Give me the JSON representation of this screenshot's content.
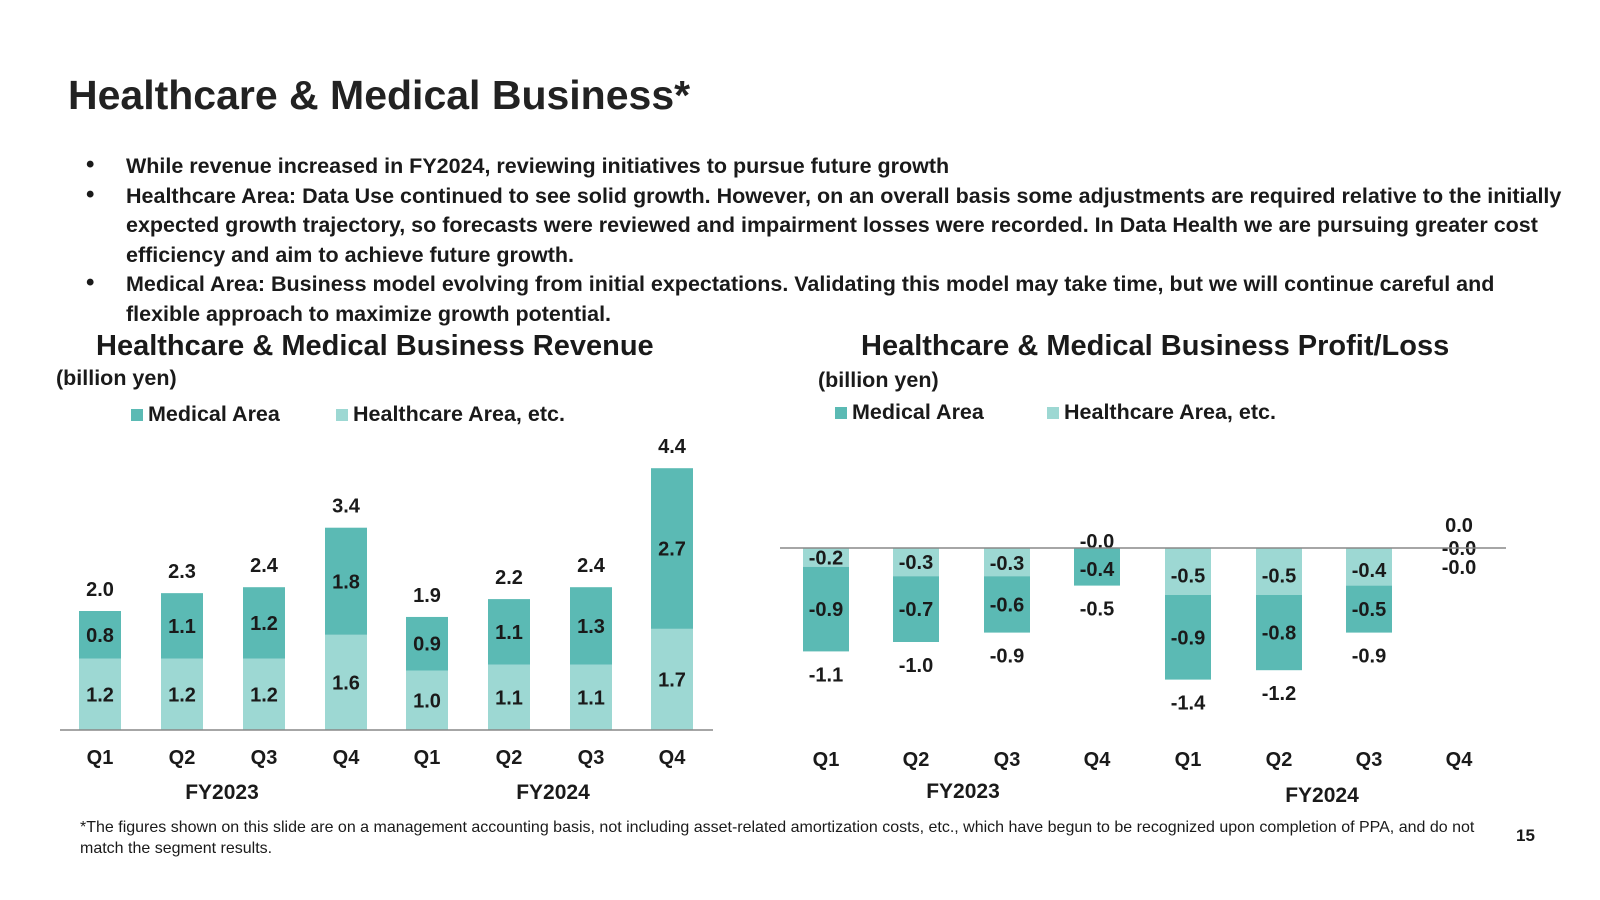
{
  "slide": {
    "title": "Healthcare & Medical Business*",
    "bullets": [
      "While revenue increased in FY2024, reviewing initiatives to pursue future growth",
      "Healthcare Area: Data Use continued to see solid growth. However, on an overall basis some adjustments are required relative to the initially expected growth trajectory, so forecasts were reviewed and impairment losses were recorded. In Data Health we are pursuing greater cost efficiency and aim to achieve future growth.",
      "Medical Area: Business model evolving from initial expectations. Validating this model may take time, but we will continue careful and flexible approach to maximize growth potential."
    ],
    "footnote": "*The figures shown on this slide are on a management accounting basis, not including asset-related amortization costs, etc., which have begun to be recognized upon completion of PPA, and do not match the segment results.",
    "page_number": "15"
  },
  "colors": {
    "medical": "#5bbab4",
    "healthcare": "#9dd8d3"
  },
  "chart_data": [
    {
      "type": "bar",
      "stacked": true,
      "title": "Healthcare & Medical Business Revenue",
      "unit": "(billion yen)",
      "categories": [
        "Q1",
        "Q2",
        "Q3",
        "Q4",
        "Q1",
        "Q2",
        "Q3",
        "Q4"
      ],
      "groups": [
        {
          "label": "FY2023",
          "from": 0,
          "to": 3
        },
        {
          "label": "FY2024",
          "from": 4,
          "to": 7
        }
      ],
      "series": [
        {
          "name": "Healthcare Area, etc.",
          "values": [
            1.2,
            1.2,
            1.2,
            1.6,
            1.0,
            1.1,
            1.1,
            1.7
          ],
          "labels": [
            "1.2",
            "1.2",
            "1.2",
            "1.6",
            "1.0",
            "1.1",
            "1.1",
            "1.7"
          ]
        },
        {
          "name": "Medical Area",
          "values": [
            0.8,
            1.1,
            1.2,
            1.8,
            0.9,
            1.1,
            1.3,
            2.7
          ],
          "labels": [
            "0.8",
            "1.1",
            "1.2",
            "1.8",
            "0.9",
            "1.1",
            "1.3",
            "2.7"
          ]
        }
      ],
      "totals": [
        2.0,
        2.3,
        2.4,
        3.4,
        1.9,
        2.2,
        2.4,
        4.4
      ],
      "total_labels": [
        "2.0",
        "2.3",
        "2.4",
        "3.4",
        "1.9",
        "2.2",
        "2.4",
        "4.4"
      ],
      "legend": [
        "Medical Area",
        "Healthcare Area, etc."
      ],
      "ylim": [
        0,
        4.4
      ]
    },
    {
      "type": "bar",
      "stacked": true,
      "title": "Healthcare & Medical Business Profit/Loss",
      "unit": "(billion yen)",
      "categories": [
        "Q1",
        "Q2",
        "Q3",
        "Q4",
        "Q1",
        "Q2",
        "Q3",
        "Q4"
      ],
      "groups": [
        {
          "label": "FY2023",
          "from": 0,
          "to": 3
        },
        {
          "label": "FY2024",
          "from": 4,
          "to": 7
        }
      ],
      "series": [
        {
          "name": "Healthcare Area, etc.",
          "values": [
            -0.2,
            -0.3,
            -0.3,
            -0.0,
            -0.5,
            -0.5,
            -0.4,
            -0.0
          ],
          "labels": [
            "-0.2",
            "-0.3",
            "-0.3",
            "-0.0",
            "-0.5",
            "-0.5",
            "-0.4",
            "-0.0"
          ]
        },
        {
          "name": "Medical Area",
          "values": [
            -0.9,
            -0.7,
            -0.6,
            -0.4,
            -0.9,
            -0.8,
            -0.5,
            -0.0
          ],
          "labels": [
            "-0.9",
            "-0.7",
            "-0.6",
            "-0.4",
            "-0.9",
            "-0.8",
            "-0.5",
            "-0.0"
          ]
        }
      ],
      "totals": [
        -1.1,
        -1.0,
        -0.9,
        -0.5,
        -1.4,
        -1.2,
        -0.9,
        0.0
      ],
      "total_labels": [
        "-1.1",
        "-1.0",
        "-0.9",
        "-0.5",
        "-1.4",
        "-1.2",
        "-0.9",
        "0.0"
      ],
      "legend": [
        "Medical Area",
        "Healthcare Area, etc."
      ],
      "ylim": [
        -1.4,
        0.4
      ]
    }
  ]
}
